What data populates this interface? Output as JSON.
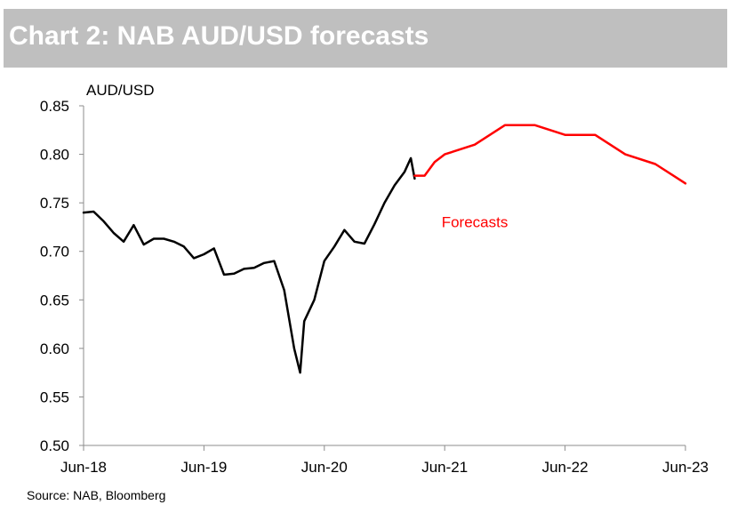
{
  "header": {
    "title": "Chart 2: NAB AUD/USD forecasts"
  },
  "source": "Source: NAB, Bloomberg",
  "chart_data": {
    "type": "line",
    "title": "Chart 2: NAB AUD/USD forecasts",
    "ylabel": "AUD/USD",
    "xlabel": "",
    "ylim": [
      0.5,
      0.85
    ],
    "yticks": [
      0.5,
      0.55,
      0.6,
      0.65,
      0.7,
      0.75,
      0.8,
      0.85
    ],
    "ytick_labels": [
      "0.50",
      "0.55",
      "0.60",
      "0.65",
      "0.70",
      "0.75",
      "0.80",
      "0.85"
    ],
    "xlim": [
      "2018-06",
      "2023-06"
    ],
    "xticks": [
      "2018-06",
      "2019-06",
      "2020-06",
      "2021-06",
      "2022-06",
      "2023-06"
    ],
    "xtick_labels": [
      "Jun-18",
      "Jun-19",
      "Jun-20",
      "Jun-21",
      "Jun-22",
      "Jun-23"
    ],
    "grid": false,
    "annotation": {
      "text": "Forecasts",
      "date": "2021-09",
      "value": 0.725,
      "color": "#ff0000"
    },
    "series": [
      {
        "color": "#000000",
        "points": [
          [
            "2018-06",
            0.74
          ],
          [
            "2018-07",
            0.741
          ],
          [
            "2018-08",
            0.731
          ],
          [
            "2018-09",
            0.719
          ],
          [
            "2018-10",
            0.71
          ],
          [
            "2018-11",
            0.727
          ],
          [
            "2018-12",
            0.707
          ],
          [
            "2019-01",
            0.713
          ],
          [
            "2019-02",
            0.713
          ],
          [
            "2019-03",
            0.71
          ],
          [
            "2019-04",
            0.705
          ],
          [
            "2019-05",
            0.693
          ],
          [
            "2019-06",
            0.697
          ],
          [
            "2019-07",
            0.703
          ],
          [
            "2019-08",
            0.676
          ],
          [
            "2019-09",
            0.677
          ],
          [
            "2019-10",
            0.682
          ],
          [
            "2019-11",
            0.683
          ],
          [
            "2019-12",
            0.688
          ],
          [
            "2020-01",
            0.69
          ],
          [
            "2020-02",
            0.66
          ],
          [
            "2020-03",
            0.6
          ],
          [
            "2020-03-19",
            0.575
          ],
          [
            "2020-04",
            0.628
          ],
          [
            "2020-05",
            0.65
          ],
          [
            "2020-06",
            0.69
          ],
          [
            "2020-07",
            0.705
          ],
          [
            "2020-08",
            0.722
          ],
          [
            "2020-09",
            0.71
          ],
          [
            "2020-10",
            0.708
          ],
          [
            "2020-11",
            0.728
          ],
          [
            "2020-12",
            0.75
          ],
          [
            "2021-01",
            0.768
          ],
          [
            "2021-02",
            0.782
          ],
          [
            "2021-02-20",
            0.796
          ],
          [
            "2021-03",
            0.775
          ]
        ]
      },
      {
        "color": "#ff0000",
        "points": [
          [
            "2021-03",
            0.778
          ],
          [
            "2021-04",
            0.778
          ],
          [
            "2021-05",
            0.792
          ],
          [
            "2021-06",
            0.8
          ],
          [
            "2021-09",
            0.81
          ],
          [
            "2021-12",
            0.83
          ],
          [
            "2022-03",
            0.83
          ],
          [
            "2022-06",
            0.82
          ],
          [
            "2022-09",
            0.82
          ],
          [
            "2022-12",
            0.8
          ],
          [
            "2023-03",
            0.79
          ],
          [
            "2023-06",
            0.77
          ]
        ]
      }
    ]
  }
}
